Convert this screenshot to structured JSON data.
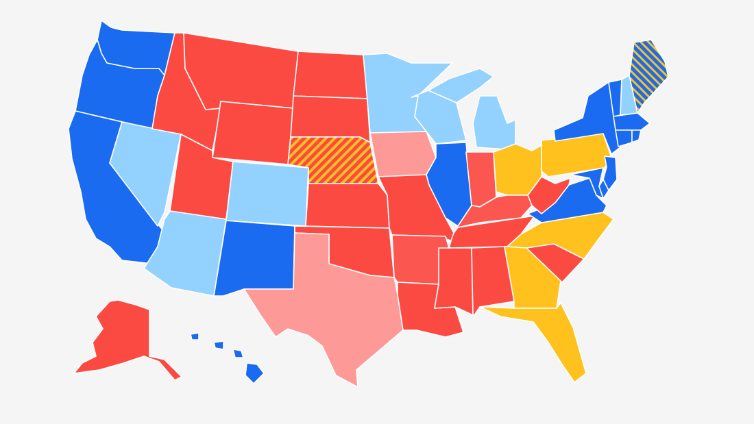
{
  "categories": {
    "solid_dem": {
      "color": "#1a6bf0"
    },
    "lean_dem": {
      "color": "#93d1ff"
    },
    "tossup": {
      "color": "#fec11e"
    },
    "lean_rep": {
      "color": "#fd9a97"
    },
    "likely_rep": {
      "color": "#fb5650"
    },
    "solid_rep": {
      "color": "#fb4a42"
    },
    "split_rep_tossup": {
      "color": "#fb4a42",
      "hatch": "#fec11e"
    },
    "split_dem_tossup": {
      "color": "#1a6bf0",
      "hatch": "#fec11e"
    }
  },
  "states": {
    "WA": "solid_dem",
    "OR": "solid_dem",
    "CA": "solid_dem",
    "NV": "lean_dem",
    "ID": "solid_rep",
    "MT": "solid_rep",
    "WY": "solid_rep",
    "UT": "solid_rep",
    "AZ": "lean_dem",
    "CO": "lean_dem",
    "NM": "solid_dem",
    "ND": "solid_rep",
    "SD": "solid_rep",
    "NE": "split_rep_tossup",
    "KS": "solid_rep",
    "OK": "solid_rep",
    "TX": "lean_rep",
    "MN": "lean_dem",
    "IA": "lean_rep",
    "MO": "solid_rep",
    "AR": "likely_rep",
    "LA": "solid_rep",
    "WI": "lean_dem",
    "IL": "solid_dem",
    "MI": "lean_dem",
    "IN": "likely_rep",
    "OH": "tossup",
    "KY": "likely_rep",
    "TN": "solid_rep",
    "MS": "solid_rep",
    "AL": "solid_rep",
    "GA": "tossup",
    "FL": "tossup",
    "SC": "solid_rep",
    "NC": "tossup",
    "VA": "solid_dem",
    "WV": "solid_rep",
    "PA": "tossup",
    "NY": "solid_dem",
    "VT": "solid_dem",
    "NH": "lean_dem",
    "ME": "split_dem_tossup",
    "MA": "solid_dem",
    "CT": "solid_dem",
    "RI": "solid_dem",
    "NJ": "solid_dem",
    "DE": "solid_dem",
    "MD": "solid_dem",
    "AK": "solid_rep",
    "HI": "solid_dem"
  }
}
